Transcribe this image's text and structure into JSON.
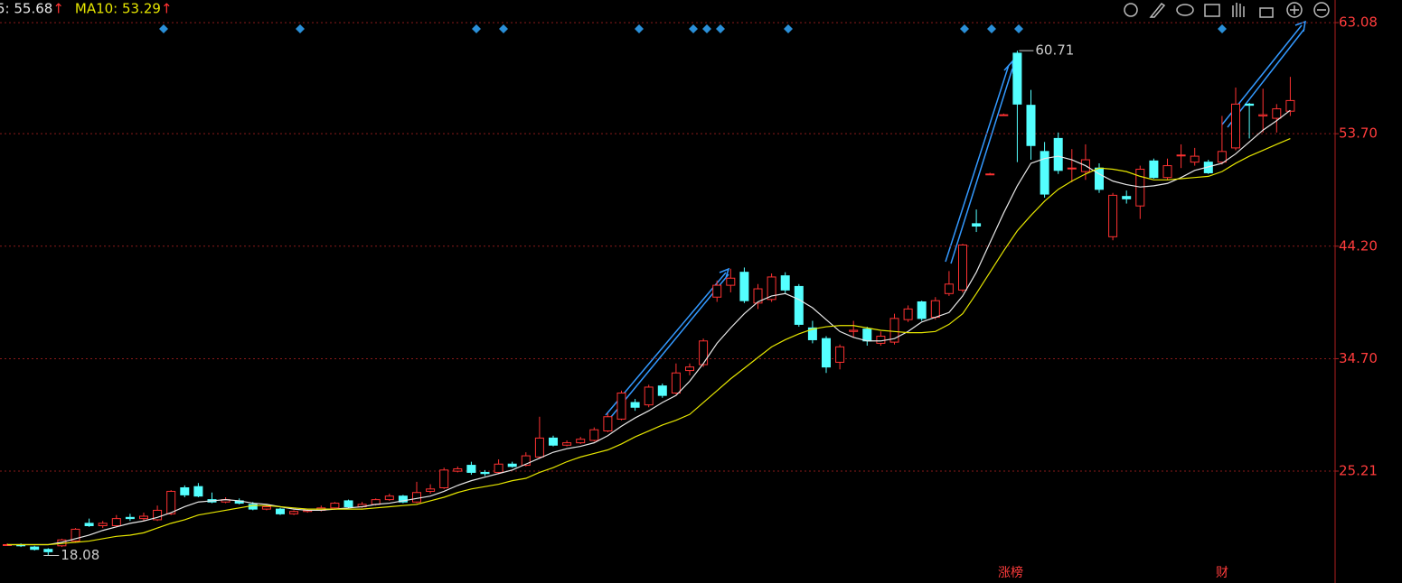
{
  "chart_data": {
    "type": "candlestick",
    "legend": [
      {
        "text": "5: 55.68",
        "arrow": "↑",
        "color": "#e8e8e8"
      },
      {
        "text": "MA10: 53.29",
        "arrow": "↑",
        "color": "#e6e600"
      }
    ],
    "open": [
      19.0,
      19.0,
      18.8,
      18.6,
      18.9,
      19.3,
      20.8,
      20.6,
      20.6,
      21.3,
      21.2,
      21.1,
      21.6,
      23.8,
      23.9,
      22.8,
      22.6,
      22.7,
      22.4,
      22.0,
      22.0,
      21.6,
      21.8,
      21.9,
      22.1,
      22.7,
      22.2,
      22.4,
      22.8,
      23.1,
      22.6,
      23.5,
      23.8,
      25.2,
      25.7,
      25.1,
      25.1,
      25.8,
      25.7,
      26.4,
      28.0,
      27.4,
      27.6,
      27.8,
      28.6,
      29.6,
      31.0,
      30.8,
      32.4,
      31.8,
      33.7,
      34.2,
      39.9,
      40.9,
      42.0,
      39.4,
      39.7,
      41.7,
      40.8,
      37.3,
      36.4,
      34.4,
      37.0,
      37.2,
      36.0,
      36.1,
      38.0,
      39.5,
      38.2,
      40.2,
      40.5,
      46.1,
      50.3,
      55.3,
      60.5,
      56.1,
      52.2,
      53.3,
      50.8,
      50.5,
      50.8,
      45.0,
      48.4,
      47.6,
      51.4,
      50.0,
      51.9,
      51.3,
      51.3,
      51.3,
      52.5,
      56.2,
      55.2,
      55.0,
      55.6
    ],
    "high": [
      19.1,
      19.1,
      18.9,
      18.7,
      19.5,
      20.4,
      21.2,
      21.0,
      21.5,
      21.6,
      21.7,
      22.3,
      23.6,
      24.0,
      24.2,
      23.4,
      23.0,
      22.9,
      22.6,
      22.3,
      22.1,
      21.9,
      22.0,
      22.3,
      22.6,
      22.8,
      22.6,
      22.9,
      23.3,
      23.2,
      24.3,
      24.1,
      25.5,
      25.6,
      26.0,
      25.3,
      26.2,
      26.0,
      26.8,
      29.8,
      28.2,
      27.8,
      28.1,
      28.9,
      30.1,
      32.0,
      31.3,
      32.5,
      32.6,
      34.3,
      34.3,
      36.4,
      41.3,
      42.3,
      42.4,
      41.0,
      41.9,
      42.0,
      41.0,
      37.9,
      36.6,
      35.9,
      37.9,
      37.4,
      37.0,
      38.5,
      39.2,
      39.6,
      39.9,
      42.1,
      44.4,
      47.3,
      50.4,
      55.4,
      60.71,
      57.4,
      53.0,
      53.8,
      52.4,
      52.8,
      51.2,
      48.7,
      48.9,
      51.0,
      51.6,
      51.6,
      52.8,
      52.5,
      51.5,
      55.2,
      57.6,
      56.3,
      57.5,
      56.2,
      58.5
    ],
    "low": [
      18.9,
      18.8,
      18.5,
      18.08,
      18.8,
      19.2,
      20.5,
      20.4,
      20.5,
      21.0,
      21.0,
      21.0,
      21.5,
      23.0,
      23.0,
      22.5,
      22.5,
      22.4,
      21.9,
      21.9,
      21.5,
      21.5,
      21.7,
      21.8,
      22.0,
      22.1,
      22.1,
      22.3,
      22.7,
      22.5,
      22.5,
      23.3,
      23.7,
      25.1,
      24.9,
      24.8,
      25.0,
      25.5,
      25.6,
      26.3,
      27.3,
      27.3,
      27.5,
      27.7,
      28.5,
      29.5,
      30.3,
      30.6,
      31.4,
      31.7,
      33.3,
      34.0,
      39.5,
      40.3,
      39.4,
      38.9,
      39.5,
      40.2,
      37.4,
      36.0,
      33.5,
      33.8,
      36.5,
      35.8,
      35.8,
      35.9,
      37.8,
      37.9,
      38.0,
      40.0,
      40.3,
      45.4,
      50.2,
      55.2,
      51.3,
      51.5,
      48.3,
      50.3,
      49.6,
      49.8,
      48.7,
      44.7,
      47.8,
      46.5,
      49.9,
      49.8,
      50.8,
      51.0,
      50.3,
      51.1,
      52.3,
      53.3,
      53.8,
      53.8,
      55.2
    ],
    "close": [
      19.0,
      18.9,
      18.6,
      18.4,
      19.4,
      20.3,
      20.6,
      20.8,
      21.2,
      21.2,
      21.4,
      21.9,
      23.5,
      23.2,
      23.1,
      22.6,
      22.8,
      22.5,
      22.0,
      22.2,
      21.6,
      21.8,
      21.9,
      22.1,
      22.5,
      22.2,
      22.4,
      22.8,
      23.1,
      22.6,
      23.4,
      23.7,
      25.3,
      25.4,
      25.1,
      25.0,
      25.8,
      25.6,
      26.5,
      28.0,
      27.4,
      27.6,
      27.9,
      28.7,
      29.8,
      31.8,
      30.6,
      32.3,
      31.6,
      33.5,
      34.0,
      36.2,
      40.9,
      41.5,
      39.6,
      40.6,
      41.6,
      40.5,
      37.6,
      36.3,
      34.0,
      35.7,
      37.1,
      36.2,
      36.6,
      38.1,
      38.9,
      38.1,
      39.6,
      41.0,
      44.3,
      45.9,
      50.3,
      55.3,
      56.2,
      52.7,
      48.6,
      50.6,
      50.8,
      51.5,
      49.0,
      48.5,
      48.2,
      50.7,
      50.0,
      51.0,
      51.9,
      51.8,
      50.4,
      52.2,
      56.2,
      56.1,
      55.3,
      55.8,
      56.5
    ],
    "up_color": "#ff3232",
    "down_color": "#54ffff",
    "ma_lines": [
      {
        "color": "#e8e8e8",
        "values": [
          19.0,
          19.0,
          19.0,
          19.0,
          19.2,
          19.5,
          19.8,
          20.2,
          20.5,
          20.8,
          21.0,
          21.3,
          21.7,
          22.2,
          22.6,
          22.7,
          22.8,
          22.7,
          22.5,
          22.4,
          22.2,
          22.0,
          21.9,
          21.9,
          22.0,
          22.1,
          22.2,
          22.4,
          22.5,
          22.7,
          22.9,
          23.1,
          23.5,
          24.0,
          24.4,
          24.7,
          25.0,
          25.3,
          25.8,
          26.3,
          26.8,
          27.1,
          27.3,
          27.6,
          28.2,
          29.0,
          29.7,
          30.3,
          31.0,
          31.6,
          32.8,
          34.3,
          36.0,
          37.3,
          38.5,
          39.5,
          40.0,
          40.2,
          39.7,
          39.0,
          38.0,
          37.0,
          36.5,
          36.2,
          36.2,
          36.4,
          37.0,
          37.8,
          38.2,
          38.6,
          40.0,
          42.0,
          44.5,
          47.0,
          49.3,
          51.2,
          51.6,
          51.8,
          51.5,
          51.0,
          50.3,
          49.7,
          49.4,
          49.2,
          49.3,
          49.5,
          50.0,
          50.6,
          50.9,
          51.2,
          52.0,
          53.0,
          54.0,
          54.8,
          55.68
        ]
      },
      {
        "color": "#e6e600",
        "values": [
          19.0,
          19.0,
          19.0,
          19.0,
          19.1,
          19.2,
          19.3,
          19.5,
          19.7,
          19.8,
          20.0,
          20.4,
          20.8,
          21.1,
          21.5,
          21.7,
          21.9,
          22.1,
          22.3,
          22.3,
          22.2,
          22.1,
          22.0,
          22.0,
          22.0,
          22.0,
          22.0,
          22.1,
          22.2,
          22.3,
          22.4,
          22.7,
          23.0,
          23.4,
          23.7,
          23.9,
          24.1,
          24.4,
          24.6,
          25.1,
          25.5,
          26.0,
          26.4,
          26.7,
          27.0,
          27.5,
          28.1,
          28.6,
          29.1,
          29.5,
          30.0,
          31.0,
          32.0,
          33.0,
          33.9,
          34.8,
          35.7,
          36.3,
          36.8,
          37.2,
          37.4,
          37.5,
          37.5,
          37.3,
          37.1,
          37.0,
          36.9,
          36.9,
          37.0,
          37.6,
          38.5,
          40.2,
          42.0,
          43.8,
          45.5,
          46.8,
          48.0,
          49.0,
          49.7,
          50.3,
          50.8,
          50.7,
          50.5,
          50.1,
          49.8,
          49.8,
          49.9,
          50.0,
          50.1,
          50.5,
          51.2,
          51.8,
          52.3,
          52.8,
          53.29
        ]
      }
    ],
    "max_value": 60.71,
    "min_value": 18.08,
    "event_labels": [
      "涨榜",
      "财"
    ],
    "ylim": [
      15.76,
      64.99
    ],
    "yticks": [
      63.08,
      {
        "value": 53.7,
        "label": "53.70"
      },
      {
        "value": 44.2,
        "label": "44.20"
      },
      {
        "value": 34.7,
        "label": "34.70"
      },
      25.21
    ],
    "grid": true
  }
}
